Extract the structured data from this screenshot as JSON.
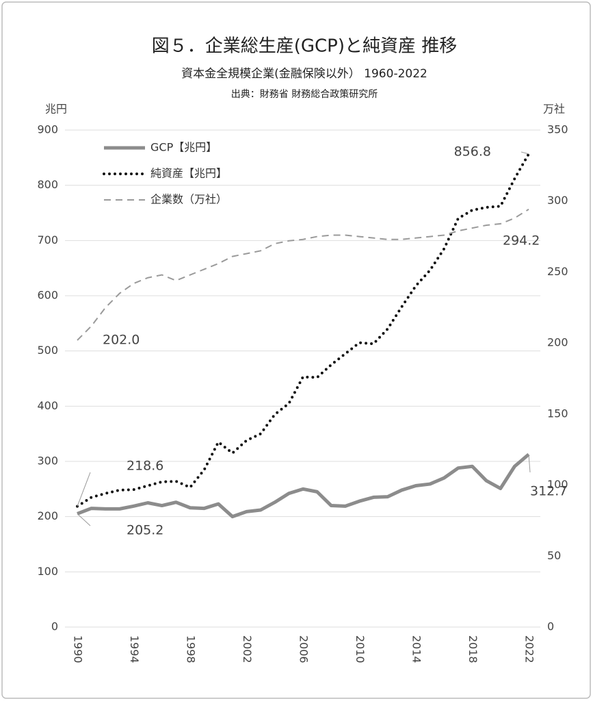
{
  "chart_data": {
    "type": "line",
    "title": "図５．企業総生産(GCP)と純資産 推移",
    "subtitle": "資本金全規模企業(金融保険以外） 1960-2022",
    "source": "出典：財務省 財務総合政策研究所",
    "y_label": "兆円",
    "y2_label": "万社",
    "x": [
      1990,
      1991,
      1992,
      1993,
      1994,
      1995,
      1996,
      1997,
      1998,
      1999,
      2000,
      2001,
      2002,
      2003,
      2004,
      2005,
      2006,
      2007,
      2008,
      2009,
      2010,
      2011,
      2012,
      2013,
      2014,
      2015,
      2016,
      2017,
      2018,
      2019,
      2020,
      2021,
      2022
    ],
    "xlim": [
      1990,
      2022
    ],
    "xticks": [
      1990,
      1994,
      1998,
      2002,
      2006,
      2010,
      2014,
      2018,
      2022
    ],
    "ylim": [
      0,
      900
    ],
    "yticks": [
      0,
      100,
      200,
      300,
      400,
      500,
      600,
      700,
      800,
      900
    ],
    "y2lim": [
      0,
      350
    ],
    "y2ticks": [
      0,
      50,
      100,
      150,
      200,
      250,
      300,
      350
    ],
    "grid": true,
    "legend": "top-left",
    "series": [
      {
        "name": "GCP【兆円】",
        "color": "#8c8c8c",
        "style": "solid",
        "values": [
          205.2,
          215,
          214,
          214,
          219,
          225,
          220,
          226,
          216,
          215,
          223,
          200,
          209,
          212,
          226,
          242,
          250,
          245,
          220,
          219,
          228,
          235,
          236,
          248,
          256,
          259,
          270,
          288,
          291,
          265,
          251,
          291,
          312.7
        ],
        "value_labels": [
          "205.2",
          null,
          null,
          null,
          null,
          null,
          null,
          null,
          null,
          null,
          null,
          null,
          null,
          null,
          null,
          null,
          null,
          null,
          null,
          null,
          null,
          null,
          null,
          null,
          null,
          null,
          null,
          null,
          null,
          null,
          null,
          null,
          "312.7"
        ]
      },
      {
        "name": "純資産【兆円】",
        "color": "#111111",
        "style": "dotted",
        "values": [
          218.6,
          235,
          242,
          248,
          249,
          256,
          263,
          264,
          253,
          285,
          335,
          315,
          338,
          350,
          385,
          405,
          453,
          452,
          475,
          495,
          515,
          513,
          540,
          580,
          618,
          646,
          685,
          740,
          755,
          760,
          762,
          812,
          856.8
        ],
        "value_labels": [
          "218.6",
          null,
          null,
          null,
          null,
          null,
          null,
          null,
          null,
          null,
          null,
          null,
          null,
          null,
          null,
          null,
          null,
          null,
          null,
          null,
          null,
          null,
          null,
          null,
          null,
          null,
          null,
          null,
          null,
          null,
          null,
          null,
          "856.8"
        ]
      },
      {
        "name": "企業数（万社）",
        "color": "#9a9a9a",
        "style": "dashed",
        "axis": "y2",
        "values": [
          202.0,
          212,
          225,
          235,
          242,
          246,
          248,
          244,
          248,
          252,
          256,
          261,
          263,
          265,
          270,
          272,
          273,
          275,
          276,
          276,
          275,
          274,
          273,
          273,
          274,
          275,
          276,
          279,
          281,
          283,
          284,
          288,
          294.2
        ],
        "value_labels": [
          "202.0",
          null,
          null,
          null,
          null,
          null,
          null,
          null,
          null,
          null,
          null,
          null,
          null,
          null,
          null,
          null,
          null,
          null,
          null,
          null,
          null,
          null,
          null,
          null,
          null,
          null,
          null,
          null,
          null,
          null,
          null,
          null,
          "294.2"
        ]
      }
    ]
  }
}
